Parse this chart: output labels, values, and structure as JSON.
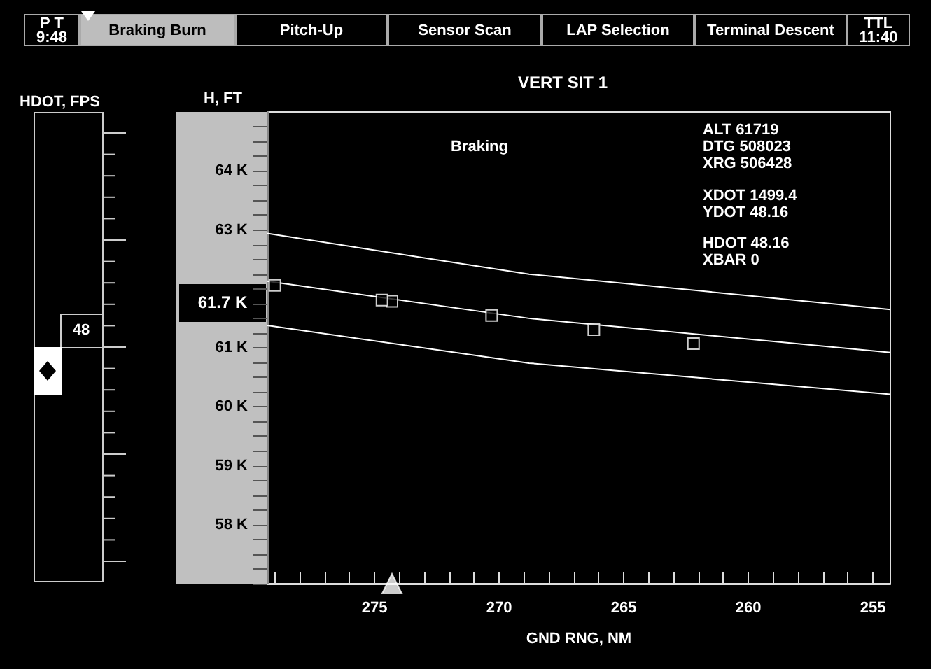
{
  "chart_data": [
    {
      "type": "other",
      "annotations": [
        "P T\n9:48",
        "Braking Burn",
        "Pitch-Up",
        "Sensor Scan",
        "LAP Selection",
        "Terminal Descent",
        "TTL\n11:40"
      ]
    },
    {
      "type": "other",
      "title": "HDOT, FPS",
      "annotations": [
        "48"
      ]
    },
    {
      "type": "line",
      "title": "VERT SIT 1",
      "xlabel": "GND RNG, NM",
      "ylabel": "H, FT",
      "xlim": [
        279.3,
        254.3
      ],
      "xticks": [
        {
          "value": 279,
          "label": null
        },
        {
          "value": 278,
          "label": null
        },
        {
          "value": 277,
          "label": null
        },
        {
          "value": 276,
          "label": null
        },
        275,
        {
          "value": 274,
          "label": null
        },
        {
          "value": 273,
          "label": null
        },
        {
          "value": 272,
          "label": null
        },
        {
          "value": 271,
          "label": null
        },
        270,
        {
          "value": 269,
          "label": null
        },
        {
          "value": 268,
          "label": null
        },
        {
          "value": 267,
          "label": null
        },
        {
          "value": 266,
          "label": null
        },
        265,
        {
          "value": 264,
          "label": null
        },
        {
          "value": 263,
          "label": null
        },
        {
          "value": 262,
          "label": null
        },
        {
          "value": 261,
          "label": null
        },
        260,
        {
          "value": 259,
          "label": null
        },
        {
          "value": 258,
          "label": null
        },
        {
          "value": 257,
          "label": null
        },
        {
          "value": 256,
          "label": null
        },
        255
      ],
      "ylim": [
        57000,
        65000
      ],
      "yticks": [
        {
          "value": 57000,
          "label": null
        },
        {
          "value": 57250,
          "label": null
        },
        {
          "value": 57500,
          "label": null
        },
        {
          "value": 57750,
          "label": null
        },
        {
          "value": 58000,
          "label": "58 K"
        },
        {
          "value": 58250,
          "label": null
        },
        {
          "value": 58500,
          "label": null
        },
        {
          "value": 58750,
          "label": null
        },
        {
          "value": 59000,
          "label": "59 K"
        },
        {
          "value": 59250,
          "label": null
        },
        {
          "value": 59500,
          "label": null
        },
        {
          "value": 59750,
          "label": null
        },
        {
          "value": 60000,
          "label": "60 K"
        },
        {
          "value": 60250,
          "label": null
        },
        {
          "value": 60500,
          "label": null
        },
        {
          "value": 60750,
          "label": null
        },
        {
          "value": 61000,
          "label": "61 K"
        },
        {
          "value": 61250,
          "label": null
        },
        {
          "value": 61500,
          "label": null
        },
        {
          "value": 61750,
          "label": null
        },
        {
          "value": 62000,
          "label": null
        },
        {
          "value": 62250,
          "label": null
        },
        {
          "value": 62500,
          "label": null
        },
        {
          "value": 62750,
          "label": null
        },
        {
          "value": 63000,
          "label": "63 K"
        },
        {
          "value": 63250,
          "label": null
        },
        {
          "value": 63500,
          "label": null
        },
        {
          "value": 63750,
          "label": null
        },
        {
          "value": 64000,
          "label": "64 K"
        },
        {
          "value": 64250,
          "label": null
        },
        {
          "value": 64500,
          "label": null
        },
        {
          "value": 64750,
          "label": null
        }
      ],
      "grid": false,
      "series": [
        {
          "type": "line",
          "marker": "none",
          "color": "#ffffff",
          "x": [
            279.3,
            268.8,
            254.3
          ],
          "values": [
            62940,
            62250,
            61650
          ]
        },
        {
          "type": "line",
          "marker": "none",
          "color": "#ffffff",
          "x": [
            279.3,
            268.8,
            254.3
          ],
          "values": [
            62130,
            61500,
            60920
          ]
        },
        {
          "type": "line",
          "marker": "none",
          "color": "#ffffff",
          "x": [
            279.3,
            268.8,
            254.3
          ],
          "values": [
            61380,
            60740,
            60210
          ]
        },
        {
          "type": "scatter",
          "marker": "square",
          "color": "#ffffff",
          "x": [
            274.3,
            270.3,
            266.2,
            262.2
          ],
          "values": [
            61790,
            61550,
            61310,
            61070
          ]
        },
        {
          "type": "scatter",
          "marker": "square",
          "color": "#ffffff",
          "x": [
            279.0,
            274.7
          ],
          "values": [
            62060,
            61810
          ]
        },
        {
          "type": "scatter",
          "marker": "triangle",
          "color": "#ffffff",
          "x": [
            274.3
          ],
          "values": [
            57000
          ]
        }
      ],
      "annotations": [
        "Braking",
        "ALT 61719\nDTG 508023\nXRG 506428",
        "XDOT 1499.4\nYDOT 48.16",
        "HDOT 48.16\nXBAR 0",
        "61.7 K"
      ]
    }
  ]
}
